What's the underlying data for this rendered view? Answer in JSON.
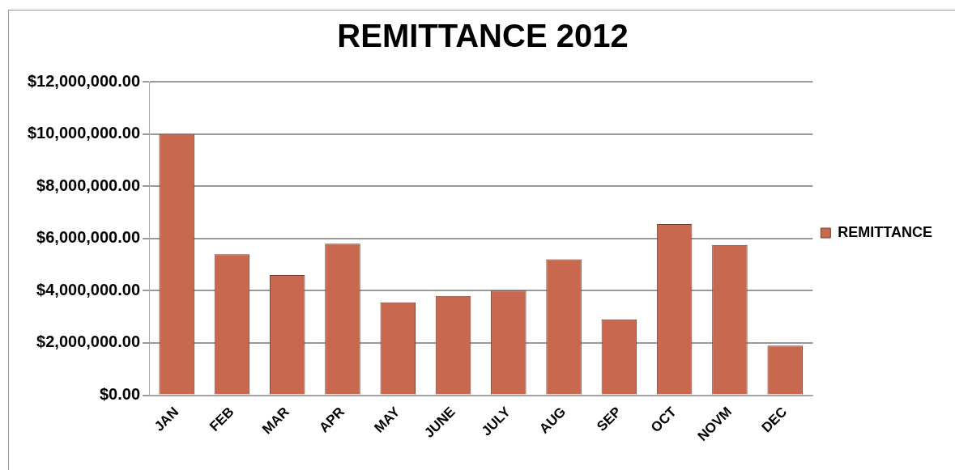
{
  "chart_data": {
    "type": "bar",
    "title": "REMITTANCE 2012",
    "categories": [
      "JAN",
      "FEB",
      "MAR",
      "APR",
      "MAY",
      "JUNE",
      "JULY",
      "AUG",
      "SEP",
      "OCT",
      "NOVM",
      "DEC"
    ],
    "series": [
      {
        "name": "REMITTANCE",
        "color": "#c8694f",
        "values": [
          10000000,
          5400000,
          4600000,
          5800000,
          3550000,
          3800000,
          4000000,
          5200000,
          2900000,
          6550000,
          5750000,
          1900000
        ]
      }
    ],
    "ylim": [
      0,
      12000000
    ],
    "yticks": [
      {
        "value": 0,
        "label": "$0.00"
      },
      {
        "value": 2000000,
        "label": "$2,000,000.00"
      },
      {
        "value": 4000000,
        "label": "$4,000,000.00"
      },
      {
        "value": 6000000,
        "label": "$6,000,000.00"
      },
      {
        "value": 8000000,
        "label": "$8,000,000.00"
      },
      {
        "value": 10000000,
        "label": "$10,000,000.00"
      },
      {
        "value": 12000000,
        "label": "$12,000,000.00"
      }
    ],
    "grid": "y",
    "legend": "right"
  }
}
